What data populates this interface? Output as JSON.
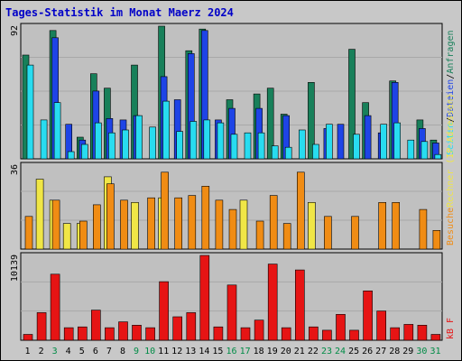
{
  "title": "Tages-Statistik im Monat Maerz 2024",
  "colors": {
    "hits": "#18805a",
    "files": "#1e44e6",
    "pages": "#28dcf0",
    "visits": "#f08c14",
    "sites": "#f0e646",
    "kbytes": "#e61414",
    "day_normal": "#000000",
    "day_weekend": "#008c46",
    "plot_bg": "#c0c0c0"
  },
  "chart_data": [
    {
      "type": "bar",
      "title": "Tages-Statistik im Monat Maerz 2024",
      "ylim": [
        0,
        92
      ],
      "ytick_label": "92",
      "categories": [
        "1",
        "2",
        "3",
        "4",
        "5",
        "6",
        "7",
        "8",
        "9",
        "10",
        "11",
        "12",
        "13",
        "14",
        "15",
        "16",
        "17",
        "18",
        "19",
        "20",
        "21",
        "22",
        "23",
        "24",
        "25",
        "26",
        "27",
        "28",
        "29",
        "30",
        "31"
      ],
      "series": [
        {
          "name": "Anfragen",
          "values": [
            72,
            0,
            89,
            0,
            15,
            59,
            49,
            0,
            65,
            0,
            92,
            0,
            75,
            90,
            0,
            41,
            0,
            45,
            49,
            31,
            0,
            53,
            0,
            0,
            76,
            39,
            0,
            54,
            0,
            27,
            13
          ]
        },
        {
          "name": "Dateien",
          "values": [
            0,
            0,
            84,
            24,
            13,
            47,
            28,
            27,
            30,
            0,
            57,
            41,
            73,
            89,
            27,
            35,
            0,
            35,
            0,
            30,
            0,
            0,
            21,
            24,
            0,
            30,
            18,
            53,
            0,
            21,
            11
          ]
        },
        {
          "name": "Seiten",
          "values": [
            65,
            27,
            39,
            5,
            10,
            25,
            18,
            20,
            30,
            22,
            40,
            19,
            26,
            27,
            25,
            17,
            18,
            18,
            9,
            8,
            20,
            10,
            24,
            0,
            17,
            0,
            24,
            25,
            13,
            12,
            3
          ]
        }
      ]
    },
    {
      "type": "bar",
      "ylim": [
        0,
        36
      ],
      "ytick_label": "36",
      "series": [
        {
          "name": "Rechner (IP-Adressen)",
          "values": [
            14,
            0,
            21,
            0,
            12,
            19,
            28,
            21,
            0,
            22,
            33,
            22,
            23,
            27,
            21,
            17,
            0,
            12,
            23,
            11,
            33,
            0,
            14,
            0,
            14,
            0,
            20,
            20,
            0,
            17,
            8
          ]
        },
        {
          "name": "Besuche",
          "values": [
            0,
            30,
            21,
            11,
            11,
            0,
            31,
            0,
            20,
            0,
            22,
            0,
            0,
            0,
            0,
            0,
            21,
            0,
            0,
            0,
            0,
            20,
            0,
            0,
            0,
            0,
            0,
            0,
            0,
            0,
            0
          ]
        }
      ]
    },
    {
      "type": "bar",
      "ylim": [
        0,
        10139
      ],
      "ytick_label": "10139",
      "series": [
        {
          "name": "kB F",
          "values": [
            700,
            3300,
            7900,
            1500,
            1600,
            3600,
            1500,
            2200,
            1800,
            1500,
            7000,
            2800,
            3300,
            10139,
            1600,
            6600,
            1500,
            2400,
            9100,
            1500,
            8400,
            1600,
            1200,
            3100,
            1200,
            5900,
            3500,
            1500,
            1900,
            1800,
            700
          ]
        }
      ]
    }
  ],
  "legend": {
    "hits": "Anfragen",
    "sep1": "/",
    "files": "Dateien",
    "sep2": "/",
    "pages": "Seiten",
    "sites": "Rechner (IP-Adressen)",
    "visits": "Besuche",
    "kbytes": "kB F"
  },
  "x_days": [
    {
      "label": "1",
      "weekend": false
    },
    {
      "label": "2",
      "weekend": false
    },
    {
      "label": "3",
      "weekend": true
    },
    {
      "label": "4",
      "weekend": false
    },
    {
      "label": "5",
      "weekend": false
    },
    {
      "label": "6",
      "weekend": false
    },
    {
      "label": "7",
      "weekend": false
    },
    {
      "label": "8",
      "weekend": false
    },
    {
      "label": "9",
      "weekend": true
    },
    {
      "label": "10",
      "weekend": true
    },
    {
      "label": "11",
      "weekend": false
    },
    {
      "label": "12",
      "weekend": false
    },
    {
      "label": "13",
      "weekend": false
    },
    {
      "label": "14",
      "weekend": false
    },
    {
      "label": "15",
      "weekend": false
    },
    {
      "label": "16",
      "weekend": true
    },
    {
      "label": "17",
      "weekend": true
    },
    {
      "label": "18",
      "weekend": false
    },
    {
      "label": "19",
      "weekend": false
    },
    {
      "label": "20",
      "weekend": false
    },
    {
      "label": "21",
      "weekend": false
    },
    {
      "label": "22",
      "weekend": false
    },
    {
      "label": "23",
      "weekend": true
    },
    {
      "label": "24",
      "weekend": true
    },
    {
      "label": "25",
      "weekend": false
    },
    {
      "label": "26",
      "weekend": false
    },
    {
      "label": "27",
      "weekend": false
    },
    {
      "label": "28",
      "weekend": false
    },
    {
      "label": "29",
      "weekend": false
    },
    {
      "label": "30",
      "weekend": true
    },
    {
      "label": "31",
      "weekend": true
    }
  ]
}
